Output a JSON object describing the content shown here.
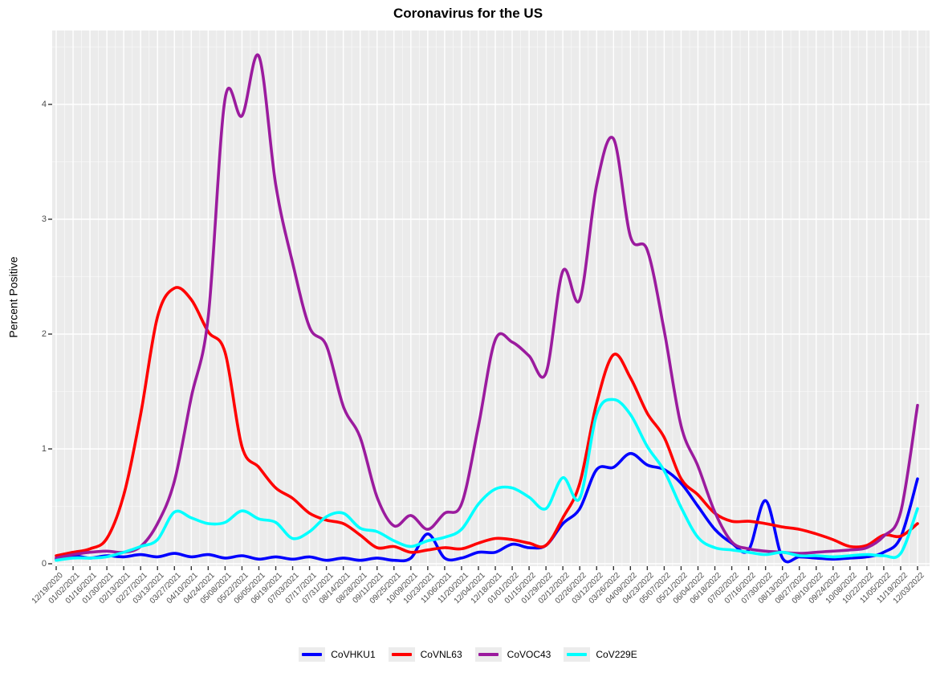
{
  "title": "Coronavirus for the US",
  "y_axis": {
    "label": "Percent Positive"
  },
  "panel": {
    "bg": "#ebebeb",
    "grid_major": "#ffffff",
    "grid_minor": "#f5f5f5",
    "tick_color": "#333333"
  },
  "chart_data": {
    "type": "line",
    "title": "Coronavirus for the US",
    "xlabel": "",
    "ylabel": "Percent Positive",
    "ylim": [
      0,
      4.65
    ],
    "y_ticks": [
      0,
      1,
      2,
      3,
      4
    ],
    "grid": "grey panel with white major gridlines at ticks and minor gridlines at 0.5-unit / weekly intervals",
    "legend_position": "bottom",
    "x": [
      "12/19/2020",
      "01/02/2021",
      "01/16/2021",
      "01/30/2021",
      "02/13/2021",
      "02/27/2021",
      "03/13/2021",
      "03/27/2021",
      "04/10/2021",
      "04/24/2021",
      "05/08/2021",
      "05/22/2021",
      "06/05/2021",
      "06/19/2021",
      "07/03/2021",
      "07/17/2021",
      "07/31/2021",
      "08/14/2021",
      "08/28/2021",
      "09/11/2021",
      "09/25/2021",
      "10/09/2021",
      "10/23/2021",
      "11/06/2021",
      "11/20/2021",
      "12/04/2021",
      "12/18/2021",
      "01/01/2022",
      "01/15/2022",
      "01/29/2022",
      "02/12/2022",
      "02/26/2022",
      "03/12/2022",
      "03/26/2022",
      "04/09/2022",
      "04/23/2022",
      "05/07/2022",
      "05/21/2022",
      "06/04/2022",
      "06/18/2022",
      "07/02/2022",
      "07/16/2022",
      "07/30/2022",
      "08/13/2022",
      "08/27/2022",
      "09/10/2022",
      "09/24/2022",
      "10/08/2022",
      "10/22/2022",
      "11/05/2022",
      "11/19/2022",
      "12/03/2022"
    ],
    "series": [
      {
        "name": "CoVHKU1",
        "color": "#0000FF",
        "values": [
          0.04,
          0.07,
          0.05,
          0.07,
          0.06,
          0.08,
          0.06,
          0.09,
          0.06,
          0.08,
          0.05,
          0.07,
          0.04,
          0.06,
          0.04,
          0.06,
          0.03,
          0.05,
          0.03,
          0.05,
          0.03,
          0.05,
          0.26,
          0.05,
          0.05,
          0.1,
          0.1,
          0.17,
          0.14,
          0.16,
          0.35,
          0.48,
          0.82,
          0.84,
          0.96,
          0.86,
          0.82,
          0.7,
          0.5,
          0.3,
          0.18,
          0.12,
          0.55,
          0.05,
          0.06,
          0.05,
          0.04,
          0.05,
          0.06,
          0.1,
          0.23,
          0.74
        ]
      },
      {
        "name": "CoVNL63",
        "color": "#FF0000",
        "values": [
          0.07,
          0.1,
          0.13,
          0.22,
          0.6,
          1.3,
          2.15,
          2.4,
          2.3,
          2.02,
          1.84,
          1.02,
          0.84,
          0.66,
          0.57,
          0.44,
          0.38,
          0.35,
          0.25,
          0.14,
          0.15,
          0.1,
          0.12,
          0.14,
          0.13,
          0.18,
          0.22,
          0.21,
          0.18,
          0.16,
          0.4,
          0.7,
          1.4,
          1.82,
          1.62,
          1.31,
          1.1,
          0.74,
          0.6,
          0.44,
          0.37,
          0.37,
          0.35,
          0.32,
          0.3,
          0.26,
          0.21,
          0.15,
          0.16,
          0.25,
          0.24,
          0.35
        ]
      },
      {
        "name": "CoVOC43",
        "color": "#9B1B9E",
        "values": [
          0.05,
          0.08,
          0.1,
          0.11,
          0.1,
          0.15,
          0.35,
          0.72,
          1.45,
          2.15,
          4.05,
          3.9,
          4.42,
          3.3,
          2.62,
          2.06,
          1.9,
          1.37,
          1.1,
          0.58,
          0.33,
          0.42,
          0.3,
          0.44,
          0.52,
          1.2,
          1.95,
          1.93,
          1.81,
          1.66,
          2.55,
          2.3,
          3.3,
          3.7,
          2.85,
          2.73,
          2.03,
          1.2,
          0.85,
          0.45,
          0.19,
          0.13,
          0.11,
          0.1,
          0.09,
          0.1,
          0.11,
          0.12,
          0.14,
          0.24,
          0.45,
          1.38
        ]
      },
      {
        "name": "CoV229E",
        "color": "#00FFFF",
        "values": [
          0.03,
          0.05,
          0.05,
          0.06,
          0.1,
          0.15,
          0.21,
          0.45,
          0.4,
          0.35,
          0.36,
          0.46,
          0.39,
          0.36,
          0.22,
          0.28,
          0.41,
          0.44,
          0.31,
          0.28,
          0.2,
          0.15,
          0.2,
          0.23,
          0.3,
          0.52,
          0.65,
          0.66,
          0.58,
          0.48,
          0.75,
          0.57,
          1.3,
          1.43,
          1.3,
          1.02,
          0.81,
          0.49,
          0.23,
          0.14,
          0.12,
          0.1,
          0.08,
          0.1,
          0.07,
          0.07,
          0.06,
          0.07,
          0.08,
          0.07,
          0.09,
          0.48
        ]
      }
    ]
  }
}
